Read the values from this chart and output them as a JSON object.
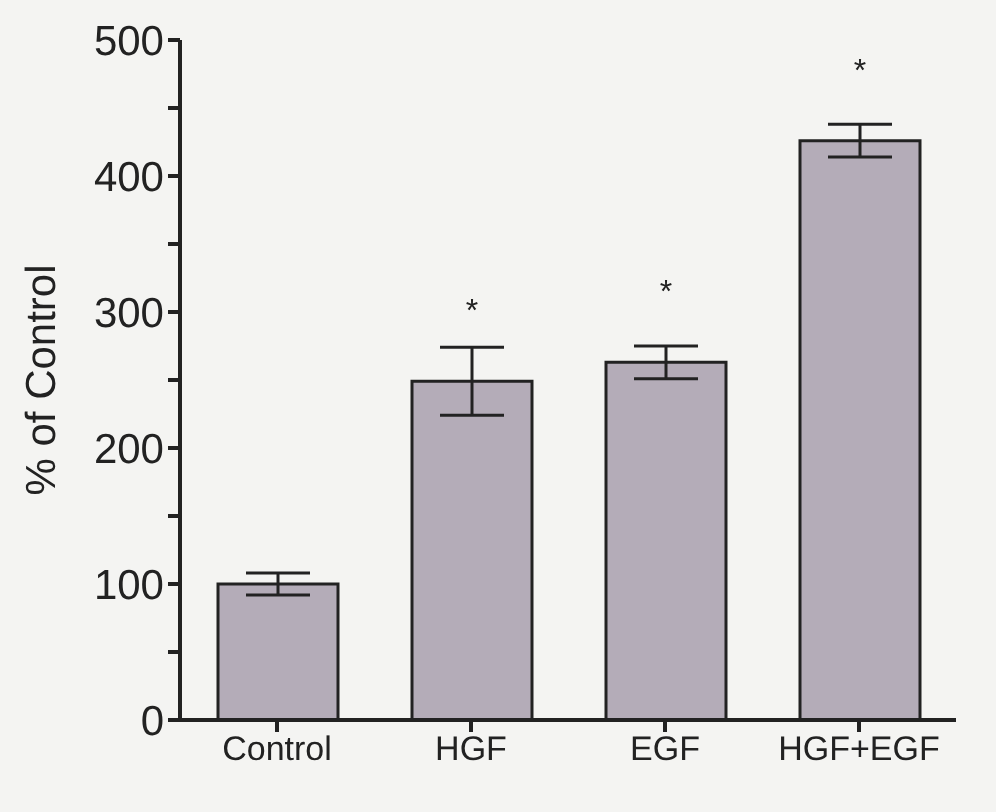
{
  "chart_data": {
    "type": "bar",
    "ylabel": "% of Control",
    "categories": [
      "Control",
      "HGF",
      "EGF",
      "HGF+EGF"
    ],
    "values": [
      100,
      249,
      263,
      426
    ],
    "errors": [
      8,
      25,
      12,
      12
    ],
    "color": "#b4acb8",
    "ylim": [
      0,
      500
    ],
    "yticks": [
      0,
      {
        "value": 50,
        "label": null
      },
      100,
      {
        "value": 150,
        "label": null
      },
      200,
      {
        "value": 250,
        "label": null
      },
      300,
      {
        "value": 350,
        "label": null
      },
      400,
      {
        "value": 450,
        "label": null
      },
      500
    ],
    "grid": false,
    "value_labels": [
      null,
      "*",
      "*",
      "*"
    ]
  }
}
